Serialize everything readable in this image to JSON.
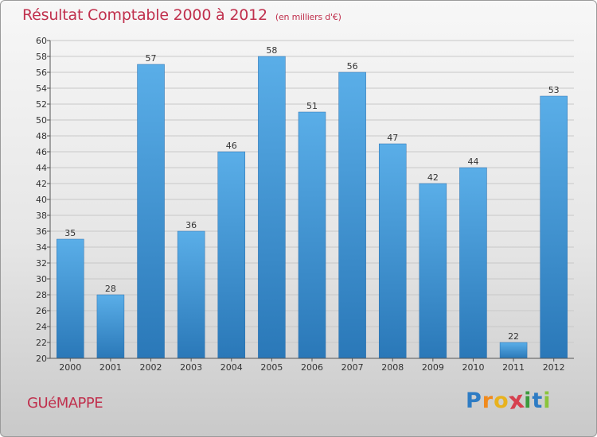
{
  "header": {
    "title": "Résultat Comptable 2000 à 2012",
    "subtitle": "(en milliers d'€)"
  },
  "footer": {
    "city": "GUéMAPPE",
    "logo": {
      "letters": [
        "P",
        "r",
        "o",
        "x",
        "i",
        "t",
        "i"
      ],
      "colors": [
        "#2e7cc4",
        "#f08a1c",
        "#e8b21e",
        "#d6404f",
        "#3c9a3c",
        "#2e7cc4",
        "#8cc43c"
      ]
    }
  },
  "chart_data": {
    "type": "bar",
    "title": "Résultat Comptable 2000 à 2012",
    "subtitle": "(en milliers d'€)",
    "categories": [
      "2000",
      "2001",
      "2002",
      "2003",
      "2004",
      "2005",
      "2006",
      "2007",
      "2008",
      "2009",
      "2010",
      "2011",
      "2012"
    ],
    "values": [
      35,
      28,
      57,
      36,
      46,
      58,
      51,
      56,
      47,
      42,
      44,
      22,
      53
    ],
    "ylim": [
      20,
      60
    ],
    "ytick_step": 2,
    "grid": true,
    "bar_color": "#3d93d6",
    "xlabel": "",
    "ylabel": ""
  }
}
